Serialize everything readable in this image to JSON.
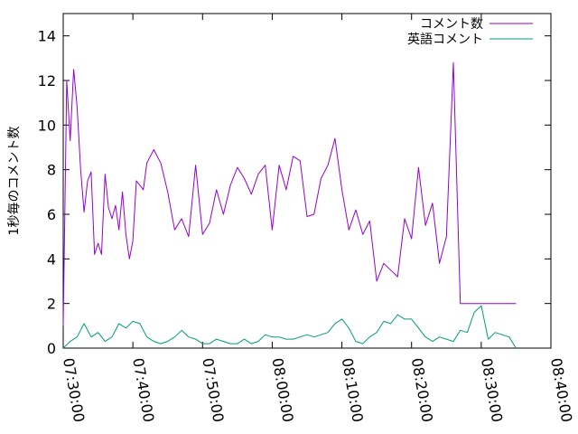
{
  "chart_data": {
    "type": "line",
    "title": "",
    "xlabel": "",
    "ylabel": "1秒毎のコメント数",
    "xlim": [
      "07:30:00",
      "08:40:00"
    ],
    "ylim": [
      0,
      15
    ],
    "x_ticks": [
      "07:30:00",
      "07:40:00",
      "07:50:00",
      "08:00:00",
      "08:10:00",
      "08:20:00",
      "08:30:00",
      "08:40:00"
    ],
    "y_ticks": [
      0,
      2,
      4,
      6,
      8,
      10,
      12,
      14
    ],
    "grid": false,
    "legend_position": "top-right",
    "series": [
      {
        "name": "コメント数",
        "color": "#9400d3",
        "x": [
          "07:30:00",
          "07:30:30",
          "07:31:00",
          "07:31:30",
          "07:32:00",
          "07:32:30",
          "07:33:00",
          "07:33:30",
          "07:34:00",
          "07:34:30",
          "07:35:00",
          "07:35:30",
          "07:36:00",
          "07:36:30",
          "07:37:00",
          "07:37:30",
          "07:38:00",
          "07:38:30",
          "07:39:00",
          "07:39:30",
          "07:40:00",
          "07:40:30",
          "07:41:00",
          "07:41:30",
          "07:42:00",
          "07:43:00",
          "07:44:00",
          "07:45:00",
          "07:46:00",
          "07:47:00",
          "07:48:00",
          "07:49:00",
          "07:50:00",
          "07:51:00",
          "07:52:00",
          "07:53:00",
          "07:54:00",
          "07:55:00",
          "07:56:00",
          "07:57:00",
          "07:58:00",
          "07:59:00",
          "08:00:00",
          "08:01:00",
          "08:02:00",
          "08:03:00",
          "08:04:00",
          "08:05:00",
          "08:06:00",
          "08:07:00",
          "08:08:00",
          "08:09:00",
          "08:10:00",
          "08:11:00",
          "08:12:00",
          "08:13:00",
          "08:14:00",
          "08:15:00",
          "08:16:00",
          "08:17:00",
          "08:18:00",
          "08:19:00",
          "08:20:00",
          "08:21:00",
          "08:22:00",
          "08:23:00",
          "08:24:00",
          "08:25:00",
          "08:26:00",
          "08:27:00",
          "08:28:00",
          "08:29:00",
          "08:30:00",
          "08:31:00",
          "08:32:00",
          "08:33:00",
          "08:34:00",
          "08:34:30",
          "08:35:00"
        ],
        "values": [
          1.0,
          12.0,
          9.3,
          12.5,
          10.8,
          8.0,
          6.1,
          7.5,
          7.9,
          4.2,
          4.7,
          4.2,
          7.8,
          6.3,
          5.8,
          6.4,
          5.3,
          7.0,
          5.1,
          4.0,
          4.8,
          7.5,
          7.3,
          7.1,
          8.3,
          8.9,
          8.3,
          7.0,
          5.3,
          5.8,
          5.0,
          8.2,
          5.1,
          5.6,
          7.1,
          6.0,
          7.3,
          8.1,
          7.6,
          6.9,
          7.8,
          8.2,
          5.3,
          8.2,
          7.1,
          8.6,
          8.4,
          5.9,
          6.0,
          7.6,
          8.2,
          9.4,
          7.1,
          5.3,
          6.2,
          5.1,
          5.7,
          3.0,
          3.8,
          3.5,
          3.2,
          5.8,
          4.9,
          8.1,
          5.5,
          6.5,
          3.8,
          5.0,
          12.8,
          2.0,
          2.0,
          2.0,
          2.0,
          2.0,
          2.0,
          2.0,
          2.0,
          2.0,
          2.0
        ]
      },
      {
        "name": "英語コメント",
        "color": "#009e73",
        "x": [
          "07:30:00",
          "07:31:00",
          "07:32:00",
          "07:33:00",
          "07:34:00",
          "07:35:00",
          "07:36:00",
          "07:37:00",
          "07:38:00",
          "07:39:00",
          "07:40:00",
          "07:41:00",
          "07:42:00",
          "07:43:00",
          "07:44:00",
          "07:45:00",
          "07:46:00",
          "07:47:00",
          "07:48:00",
          "07:49:00",
          "07:50:00",
          "07:51:00",
          "07:52:00",
          "07:53:00",
          "07:54:00",
          "07:55:00",
          "07:56:00",
          "07:57:00",
          "07:58:00",
          "07:59:00",
          "08:00:00",
          "08:01:00",
          "08:02:00",
          "08:03:00",
          "08:04:00",
          "08:05:00",
          "08:06:00",
          "08:07:00",
          "08:08:00",
          "08:09:00",
          "08:10:00",
          "08:11:00",
          "08:12:00",
          "08:13:00",
          "08:14:00",
          "08:15:00",
          "08:16:00",
          "08:17:00",
          "08:18:00",
          "08:19:00",
          "08:20:00",
          "08:21:00",
          "08:22:00",
          "08:23:00",
          "08:24:00",
          "08:25:00",
          "08:26:00",
          "08:27:00",
          "08:28:00",
          "08:29:00",
          "08:30:00",
          "08:31:00",
          "08:32:00",
          "08:33:00",
          "08:34:00",
          "08:35:00"
        ],
        "values": [
          0.0,
          0.3,
          0.5,
          1.1,
          0.5,
          0.7,
          0.3,
          0.5,
          1.1,
          0.9,
          1.2,
          1.1,
          0.5,
          0.3,
          0.2,
          0.3,
          0.5,
          0.8,
          0.5,
          0.4,
          0.2,
          0.2,
          0.4,
          0.3,
          0.2,
          0.2,
          0.4,
          0.2,
          0.3,
          0.6,
          0.5,
          0.5,
          0.4,
          0.4,
          0.5,
          0.6,
          0.5,
          0.6,
          0.7,
          1.1,
          1.3,
          0.9,
          0.3,
          0.2,
          0.5,
          0.7,
          1.2,
          1.1,
          1.5,
          1.3,
          1.3,
          0.9,
          0.5,
          0.3,
          0.5,
          0.4,
          0.3,
          0.8,
          0.7,
          1.6,
          1.9,
          0.4,
          0.7,
          0.6,
          0.5,
          0.0
        ]
      }
    ]
  }
}
